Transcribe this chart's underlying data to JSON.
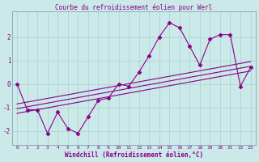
{
  "title": "Courbe du refroidissement éolien pour Werl",
  "xlabel": "Windchill (Refroidissement éolien,°C)",
  "background_color": "#cce9e9",
  "grid_color": "#b0d4d4",
  "line_color": "#880088",
  "spine_color": "#7799aa",
  "xlim": [
    -0.5,
    23.5
  ],
  "ylim": [
    -2.6,
    3.1
  ],
  "yticks": [
    -2,
    -1,
    0,
    1,
    2
  ],
  "xticks": [
    0,
    1,
    2,
    3,
    4,
    5,
    6,
    7,
    8,
    9,
    10,
    11,
    12,
    13,
    14,
    15,
    16,
    17,
    18,
    19,
    20,
    21,
    22,
    23
  ],
  "curve_x": [
    0,
    1,
    2,
    3,
    4,
    5,
    6,
    7,
    8,
    9,
    10,
    11,
    12,
    13,
    14,
    15,
    16,
    17,
    18,
    19,
    20,
    21,
    22,
    23
  ],
  "curve_y": [
    0.0,
    -1.1,
    -1.1,
    -2.1,
    -1.2,
    -1.9,
    -2.1,
    -1.4,
    -0.7,
    -0.6,
    0.0,
    -0.1,
    0.5,
    1.2,
    2.0,
    2.6,
    2.4,
    1.6,
    0.8,
    1.9,
    2.1,
    2.1,
    -0.1,
    0.7
  ],
  "line1_x": [
    0,
    23
  ],
  "line1_y": [
    -1.05,
    0.75
  ],
  "line2_x": [
    0,
    23
  ],
  "line2_y": [
    -1.25,
    0.55
  ],
  "line3_x": [
    0,
    23
  ],
  "line3_y": [
    -0.85,
    0.95
  ]
}
